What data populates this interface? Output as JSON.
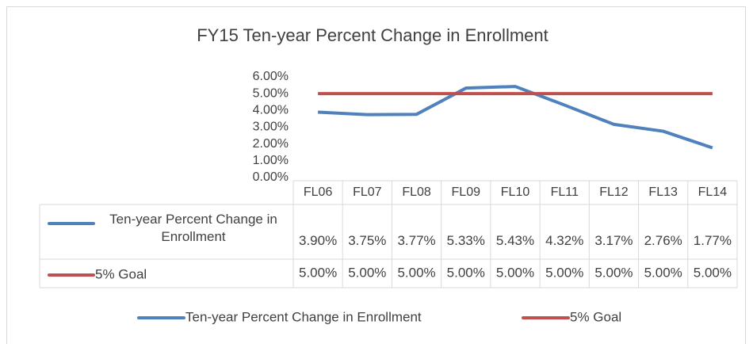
{
  "chart_data": {
    "type": "line",
    "title": "FY15 Ten-year Percent Change in Enrollment",
    "categories": [
      "FL06",
      "FL07",
      "FL08",
      "FL09",
      "FL10",
      "FL11",
      "FL12",
      "FL13",
      "FL14"
    ],
    "series": [
      {
        "name": "Ten-year Percent Change in Enrollment",
        "color": "#4f81bd",
        "values": [
          3.9,
          3.75,
          3.77,
          5.33,
          5.43,
          4.32,
          3.17,
          2.76,
          1.77
        ],
        "value_labels": [
          "3.90%",
          "3.75%",
          "3.77%",
          "5.33%",
          "5.43%",
          "4.32%",
          "3.17%",
          "2.76%",
          "1.77%"
        ]
      },
      {
        "name": "5% Goal",
        "color": "#c0504d",
        "values": [
          5,
          5,
          5,
          5,
          5,
          5,
          5,
          5,
          5
        ],
        "value_labels": [
          "5.00%",
          "5.00%",
          "5.00%",
          "5.00%",
          "5.00%",
          "5.00%",
          "5.00%",
          "5.00%",
          "5.00%"
        ]
      }
    ],
    "ylim": [
      0,
      6
    ],
    "yticks": [
      {
        "value": 0,
        "label": "0.00%"
      },
      {
        "value": 1,
        "label": "1.00%"
      },
      {
        "value": 2,
        "label": "2.00%"
      },
      {
        "value": 3,
        "label": "3.00%"
      },
      {
        "value": 4,
        "label": "4.00%"
      },
      {
        "value": 5,
        "label": "5.00%"
      },
      {
        "value": 6,
        "label": "6.00%"
      }
    ],
    "grid": false,
    "legend": "bottom"
  }
}
